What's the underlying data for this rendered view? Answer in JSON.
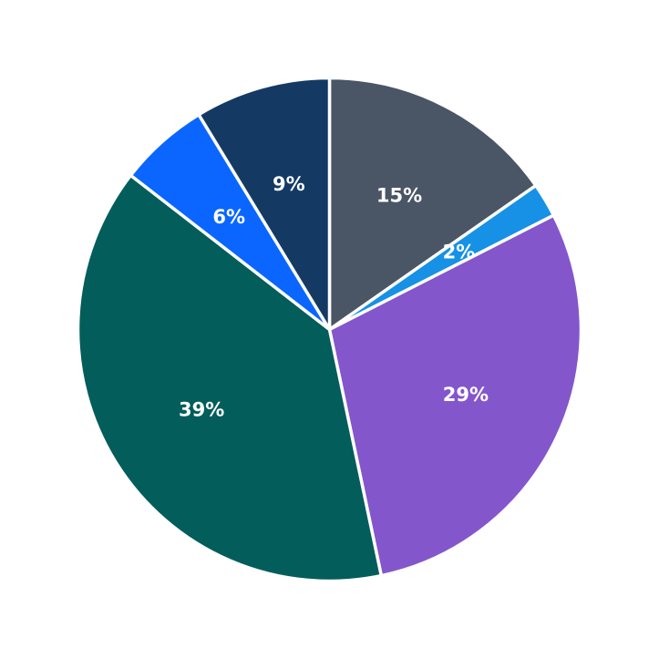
{
  "chart_data": {
    "type": "pie",
    "title": "",
    "start": "top",
    "direction": "clockwise",
    "legend": "none",
    "slices": [
      {
        "label": "15%",
        "value": 15.3,
        "color": "#4a5565"
      },
      {
        "label": "2%",
        "value": 2.2,
        "color": "#1691e6"
      },
      {
        "label": "29%",
        "value": 29.2,
        "color": "#8456cc"
      },
      {
        "label": "39%",
        "value": 38.8,
        "color": "#025d5b"
      },
      {
        "label": "6%",
        "value": 5.8,
        "color": "#0b66ff"
      },
      {
        "label": "9%",
        "value": 8.7,
        "color": "#143a64"
      }
    ]
  }
}
